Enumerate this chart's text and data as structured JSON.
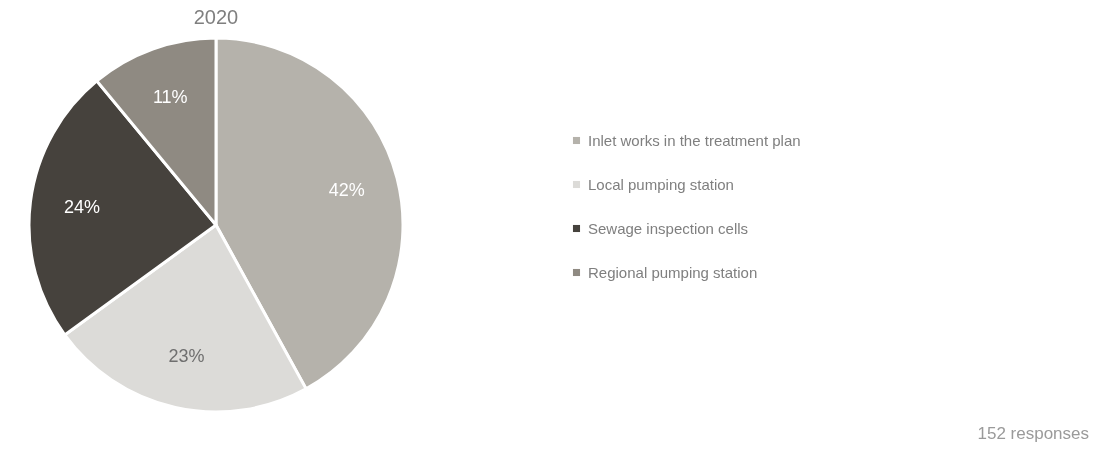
{
  "chart_data": {
    "type": "pie",
    "title": "2020",
    "categories": [
      "Inlet works in the treatment plan",
      "Local pumping station",
      "Sewage inspection cells",
      "Regional pumping station"
    ],
    "values": [
      42,
      23,
      24,
      11
    ],
    "colors": [
      "#b5b2ab",
      "#dcdbd8",
      "#46423d",
      "#8f8a82"
    ],
    "value_labels": [
      "42%",
      "23%",
      "24%",
      "11%"
    ],
    "legend": "right",
    "annotations": [
      "152 responses"
    ]
  }
}
